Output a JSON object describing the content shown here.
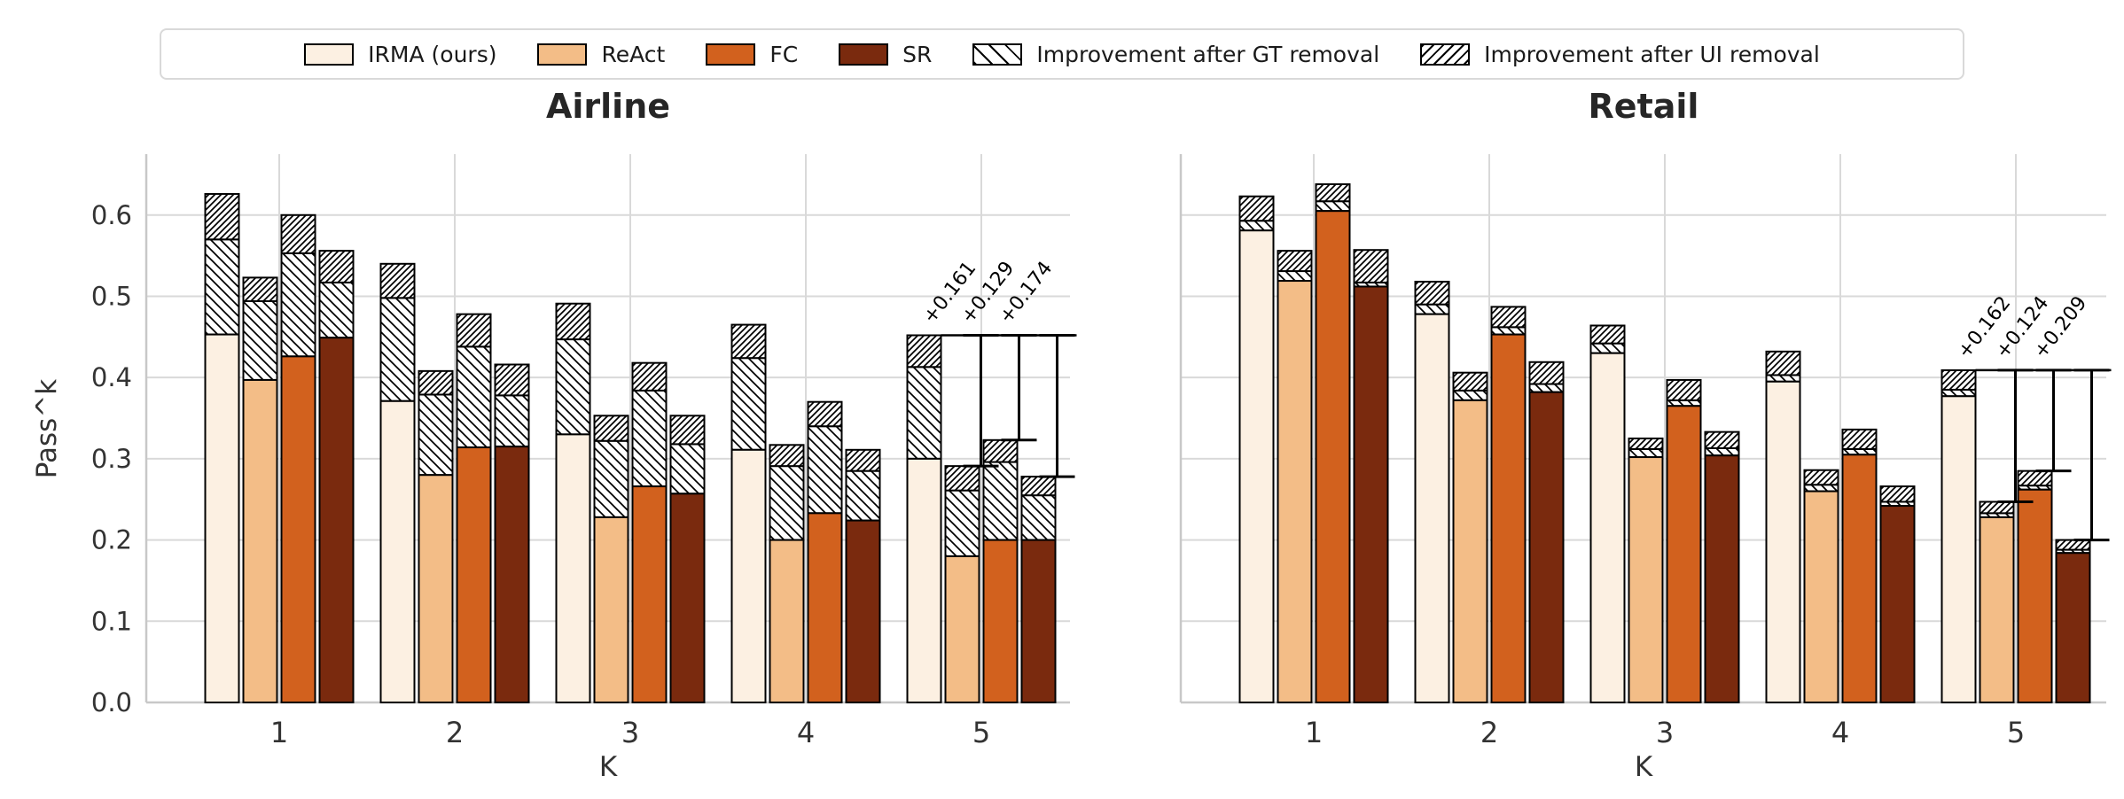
{
  "page": {
    "background": "#ffffff"
  },
  "legend": {
    "border_color": "#d9d9d9",
    "items": [
      {
        "label": "IRMA (ours)",
        "swatch": "solid",
        "color": "#fcf0e2"
      },
      {
        "label": "ReAct",
        "swatch": "solid",
        "color": "#f3bd87"
      },
      {
        "label": "FC",
        "swatch": "solid",
        "color": "#d2611e"
      },
      {
        "label": "SR",
        "swatch": "solid",
        "color": "#7a2a0e"
      },
      {
        "label": "Improvement after GT removal",
        "swatch": "hatch-backslash"
      },
      {
        "label": "Improvement after UI removal",
        "swatch": "hatch-slash"
      }
    ]
  },
  "style": {
    "bar_edge_color": "#000000",
    "grid_color": "#d9d9d9",
    "spine_color": "#c8c8c8",
    "tick_label_color": "#333333",
    "annotation_color": "#000000"
  },
  "chart_data": [
    {
      "type": "bar",
      "id": "airline",
      "title": "Airline",
      "xlabel": "K",
      "ylabel": "Pass^k",
      "categories": [
        "1",
        "2",
        "3",
        "4",
        "5"
      ],
      "yticks": [
        0.0,
        0.1,
        0.2,
        0.3,
        0.4,
        0.5,
        0.6
      ],
      "ylim": [
        0,
        0.675
      ],
      "grid": true,
      "show_ytick_labels": true,
      "legend_position": "top-outside",
      "series": [
        {
          "name": "IRMA (ours)",
          "color": "#fcf0e2",
          "solid": [
            0.453,
            0.371,
            0.33,
            0.311,
            0.3
          ],
          "after_gt_removal": [
            0.57,
            0.498,
            0.447,
            0.424,
            0.413
          ],
          "total": [
            0.626,
            0.54,
            0.491,
            0.465,
            0.452
          ]
        },
        {
          "name": "ReAct",
          "color": "#f3bd87",
          "solid": [
            0.397,
            0.28,
            0.228,
            0.2,
            0.18
          ],
          "after_gt_removal": [
            0.494,
            0.379,
            0.322,
            0.291,
            0.261
          ],
          "total": [
            0.523,
            0.408,
            0.353,
            0.317,
            0.291
          ]
        },
        {
          "name": "FC",
          "color": "#d2611e",
          "solid": [
            0.426,
            0.314,
            0.266,
            0.233,
            0.2
          ],
          "after_gt_removal": [
            0.553,
            0.438,
            0.384,
            0.34,
            0.296
          ],
          "total": [
            0.6,
            0.478,
            0.418,
            0.37,
            0.323
          ]
        },
        {
          "name": "SR",
          "color": "#7a2a0e",
          "solid": [
            0.449,
            0.315,
            0.257,
            0.224,
            0.2
          ],
          "after_gt_removal": [
            0.517,
            0.378,
            0.318,
            0.285,
            0.255
          ],
          "total": [
            0.556,
            0.416,
            0.353,
            0.311,
            0.278
          ]
        }
      ],
      "annotations": {
        "category": "5",
        "line_level": 0.452,
        "items": [
          {
            "target": "ReAct",
            "label": "+0.161"
          },
          {
            "target": "FC",
            "label": "+0.129"
          },
          {
            "target": "SR",
            "label": "+0.174"
          }
        ]
      }
    },
    {
      "type": "bar",
      "id": "retail",
      "title": "Retail",
      "xlabel": "K",
      "categories": [
        "1",
        "2",
        "3",
        "4",
        "5"
      ],
      "yticks": [
        0.0,
        0.1,
        0.2,
        0.3,
        0.4,
        0.5,
        0.6
      ],
      "ylim": [
        0,
        0.675
      ],
      "grid": true,
      "show_ytick_labels": false,
      "series": [
        {
          "name": "IRMA (ours)",
          "color": "#fcf0e2",
          "solid": [
            0.581,
            0.478,
            0.43,
            0.395,
            0.377
          ],
          "after_gt_removal": [
            0.593,
            0.49,
            0.442,
            0.403,
            0.385
          ],
          "total": [
            0.623,
            0.518,
            0.464,
            0.432,
            0.409
          ]
        },
        {
          "name": "ReAct",
          "color": "#f3bd87",
          "solid": [
            0.519,
            0.372,
            0.302,
            0.26,
            0.228
          ],
          "after_gt_removal": [
            0.531,
            0.384,
            0.312,
            0.268,
            0.233
          ],
          "total": [
            0.556,
            0.406,
            0.325,
            0.286,
            0.247
          ]
        },
        {
          "name": "FC",
          "color": "#d2611e",
          "solid": [
            0.605,
            0.453,
            0.365,
            0.305,
            0.262
          ],
          "after_gt_removal": [
            0.617,
            0.462,
            0.372,
            0.312,
            0.267
          ],
          "total": [
            0.638,
            0.487,
            0.397,
            0.336,
            0.285
          ]
        },
        {
          "name": "SR",
          "color": "#7a2a0e",
          "solid": [
            0.512,
            0.382,
            0.304,
            0.242,
            0.184
          ],
          "after_gt_removal": [
            0.517,
            0.392,
            0.313,
            0.247,
            0.188
          ],
          "total": [
            0.557,
            0.419,
            0.333,
            0.266,
            0.2
          ]
        }
      ],
      "annotations": {
        "category": "5",
        "line_level": 0.409,
        "items": [
          {
            "target": "ReAct",
            "label": "+0.162"
          },
          {
            "target": "FC",
            "label": "+0.124"
          },
          {
            "target": "SR",
            "label": "+0.209"
          }
        ]
      }
    }
  ]
}
